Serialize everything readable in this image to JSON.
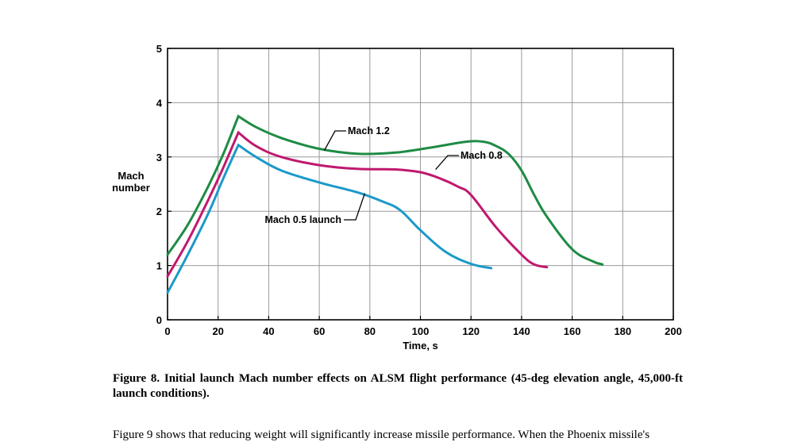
{
  "chart_data": {
    "type": "line",
    "xlabel": "Time, s",
    "ylabel_lines": [
      "Mach",
      "number"
    ],
    "xlim": [
      0,
      200
    ],
    "ylim": [
      0,
      5
    ],
    "xticks": [
      "0",
      "20",
      "40",
      "60",
      "80",
      "100",
      "120",
      "140",
      "160",
      "180",
      "200"
    ],
    "yticks": [
      "0",
      "1",
      "2",
      "3",
      "4",
      "5"
    ],
    "grid": true,
    "series": [
      {
        "name": "Mach 1.2",
        "color": "#1e8b45",
        "x": [
          0,
          8,
          16,
          22,
          28,
          35,
          45,
          60,
          75,
          90,
          105,
          118,
          125,
          130,
          135,
          140,
          145,
          150,
          160,
          168,
          172
        ],
        "y": [
          1.2,
          1.75,
          2.45,
          3.05,
          3.75,
          3.55,
          3.35,
          3.15,
          3.06,
          3.08,
          3.18,
          3.28,
          3.28,
          3.2,
          3.05,
          2.75,
          2.3,
          1.9,
          1.3,
          1.08,
          1.02
        ]
      },
      {
        "name": "Mach 0.8",
        "color": "#c0196e",
        "x": [
          0,
          8,
          16,
          22,
          28,
          35,
          45,
          60,
          75,
          90,
          100,
          108,
          115,
          120,
          130,
          140,
          145,
          150
        ],
        "y": [
          0.8,
          1.45,
          2.2,
          2.8,
          3.45,
          3.2,
          3.0,
          2.85,
          2.78,
          2.77,
          2.72,
          2.6,
          2.45,
          2.3,
          1.7,
          1.2,
          1.02,
          0.97
        ]
      },
      {
        "name": "Mach 0.5 launch",
        "color": "#1b99c9",
        "x": [
          0,
          8,
          16,
          22,
          28,
          35,
          45,
          60,
          75,
          85,
          92,
          100,
          110,
          120,
          128
        ],
        "y": [
          0.5,
          1.2,
          1.95,
          2.6,
          3.22,
          3.0,
          2.75,
          2.53,
          2.35,
          2.18,
          2.02,
          1.65,
          1.25,
          1.03,
          0.95
        ]
      }
    ],
    "annotations": [
      {
        "text": "Mach 1.2",
        "series": "Mach 1.2",
        "x": 62,
        "y": 3.12
      },
      {
        "text": "Mach 0.8",
        "series": "Mach 0.8",
        "x": 106,
        "y": 2.77
      },
      {
        "text": "Mach 0.5 launch",
        "series": "Mach 0.5 launch",
        "x": 78,
        "y": 2.33
      }
    ]
  },
  "caption": "Figure 8. Initial launch Mach number effects on ALSM flight performance (45-deg elevation angle, 45,000-ft launch conditions).",
  "body_text_partial": "Figure 9 shows that reducing weight will significantly increase missile performance. When the Phoenix missile's"
}
